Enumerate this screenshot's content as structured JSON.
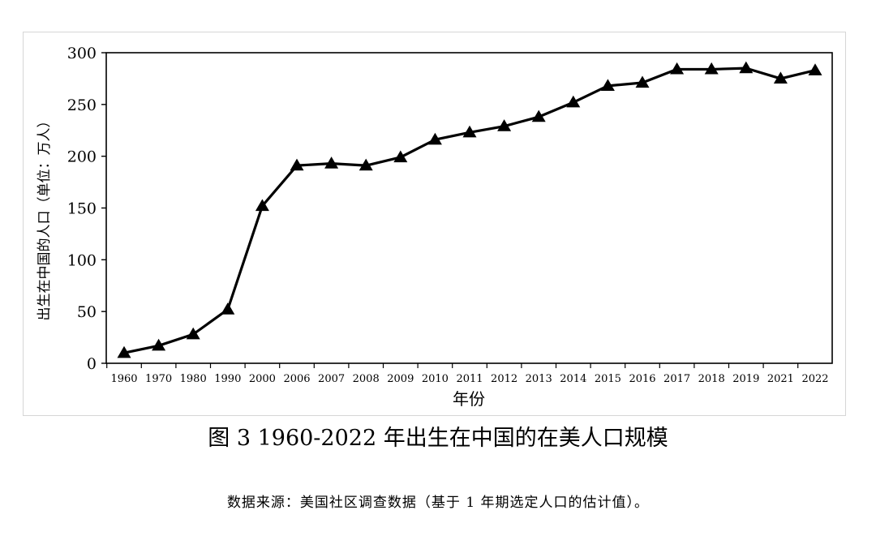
{
  "chart_data": {
    "type": "line",
    "categories": [
      "1960",
      "1970",
      "1980",
      "1990",
      "2000",
      "2006",
      "2007",
      "2008",
      "2009",
      "2010",
      "2011",
      "2012",
      "2013",
      "2014",
      "2015",
      "2016",
      "2017",
      "2018",
      "2019",
      "2021",
      "2022"
    ],
    "values": [
      10,
      17,
      28,
      52,
      152,
      191,
      193,
      191,
      199,
      216,
      223,
      229,
      238,
      252,
      268,
      271,
      284,
      284,
      285,
      275,
      283
    ],
    "xlabel": "年份",
    "ylabel": "出生在中国的人口（单位：万人）",
    "ylim": [
      0,
      300
    ],
    "yticks": [
      0,
      50,
      100,
      150,
      200,
      250,
      300
    ],
    "marker": "triangle",
    "line_color": "#000000",
    "grid": false
  },
  "caption": "图 3 1960-2022 年出生在中国的在美人口规模",
  "source_note": "数据来源：美国社区调查数据（基于 1 年期选定人口的估计值）。"
}
